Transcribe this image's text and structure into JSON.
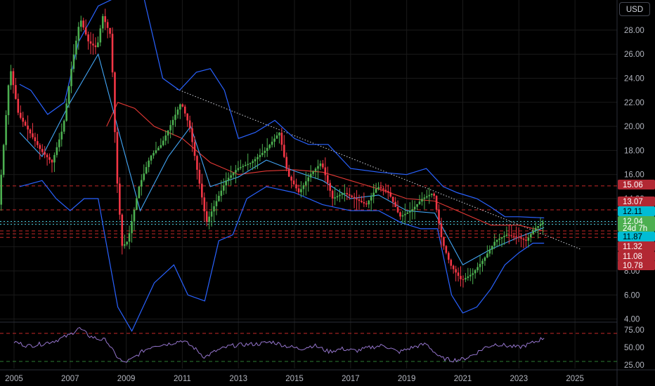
{
  "currency_button": "USD",
  "badges": [
    {
      "value": "15.06",
      "color": "#b22833",
      "text_color": "#ffffff"
    },
    {
      "value": "13.07",
      "color": "#b22833",
      "text_color": "#ffffff"
    },
    {
      "value": "12.11",
      "color": "#00bcd4",
      "text_color": "#000000"
    },
    {
      "value": "12.04",
      "sub": "24d 7h",
      "color": "#4caf50",
      "text_color": "#ffffff"
    },
    {
      "value": "11.87",
      "color": "#00bcd4",
      "text_color": "#000000"
    },
    {
      "value": "11.32",
      "color": "#b22833",
      "text_color": "#ffffff"
    },
    {
      "value": "11.08",
      "color": "#b22833",
      "text_color": "#ffffff"
    },
    {
      "value": "10.78",
      "color": "#b22833",
      "text_color": "#ffffff"
    }
  ],
  "chart_data": [
    {
      "type": "candlestick",
      "y_ticks": [
        4,
        6,
        8,
        10,
        12,
        14,
        16,
        18,
        20,
        22,
        24,
        26,
        28
      ],
      "y_tick_labels": [
        "4.00",
        "6.00",
        "8.00",
        "10.00",
        "12.00",
        "14.00",
        "16.00",
        "18.00",
        "20.00",
        "22.00",
        "24.00",
        "26.00",
        "28.00"
      ],
      "ylim": [
        3.8,
        30.5
      ],
      "x_ticks": [
        2005,
        2007,
        2009,
        2011,
        2013,
        2015,
        2017,
        2019,
        2021,
        2023,
        2025
      ],
      "xlim": [
        2004.5,
        2026.5
      ],
      "horizontal_levels": [
        {
          "value": 15.06,
          "style": "red-dashed"
        },
        {
          "value": 13.07,
          "style": "red-dashed"
        },
        {
          "value": 12.11,
          "style": "cyan-dotted"
        },
        {
          "value": 11.87,
          "style": "cyan-dotted"
        },
        {
          "value": 11.32,
          "style": "red-dashed"
        },
        {
          "value": 11.08,
          "style": "red-dashed"
        },
        {
          "value": 10.78,
          "style": "red-dashed"
        }
      ],
      "trendline": {
        "from": [
          2010.8,
          23.1
        ],
        "to": [
          2025.2,
          9.8
        ],
        "style": "white-dotted"
      },
      "price_path": [
        [
          2004.5,
          13.5
        ],
        [
          2004.9,
          25.0
        ],
        [
          2005.2,
          21.0
        ],
        [
          2005.6,
          19.5
        ],
        [
          2006.0,
          18.0
        ],
        [
          2006.4,
          17.0
        ],
        [
          2006.8,
          20.0
        ],
        [
          2007.1,
          25.0
        ],
        [
          2007.4,
          29.0
        ],
        [
          2007.7,
          27.0
        ],
        [
          2008.0,
          26.5
        ],
        [
          2008.2,
          29.2
        ],
        [
          2008.5,
          27.5
        ],
        [
          2008.7,
          16.0
        ],
        [
          2008.9,
          10.0
        ],
        [
          2009.1,
          10.5
        ],
        [
          2009.5,
          15.0
        ],
        [
          2009.9,
          17.5
        ],
        [
          2010.3,
          18.5
        ],
        [
          2010.7,
          20.5
        ],
        [
          2011.0,
          22.0
        ],
        [
          2011.3,
          20.0
        ],
        [
          2011.6,
          16.0
        ],
        [
          2011.9,
          12.0
        ],
        [
          2012.2,
          13.5
        ],
        [
          2012.6,
          15.5
        ],
        [
          2013.0,
          16.5
        ],
        [
          2013.5,
          17.0
        ],
        [
          2014.0,
          18.0
        ],
        [
          2014.5,
          19.5
        ],
        [
          2014.8,
          16.0
        ],
        [
          2015.2,
          14.5
        ],
        [
          2015.6,
          16.0
        ],
        [
          2016.0,
          17.0
        ],
        [
          2016.4,
          14.0
        ],
        [
          2016.8,
          14.5
        ],
        [
          2017.2,
          14.0
        ],
        [
          2017.6,
          13.5
        ],
        [
          2018.0,
          15.0
        ],
        [
          2018.4,
          14.5
        ],
        [
          2018.8,
          12.5
        ],
        [
          2019.2,
          13.0
        ],
        [
          2019.6,
          14.0
        ],
        [
          2020.0,
          14.5
        ],
        [
          2020.3,
          10.5
        ],
        [
          2020.6,
          8.5
        ],
        [
          2021.0,
          7.2
        ],
        [
          2021.4,
          7.8
        ],
        [
          2021.8,
          9.0
        ],
        [
          2022.2,
          10.5
        ],
        [
          2022.6,
          11.0
        ],
        [
          2023.0,
          10.8
        ],
        [
          2023.3,
          10.5
        ],
        [
          2023.6,
          11.5
        ],
        [
          2023.9,
          12.04
        ]
      ],
      "moving_average_red": [
        [
          2008.3,
          20.0
        ],
        [
          2008.7,
          22.0
        ],
        [
          2009.3,
          21.5
        ],
        [
          2010.0,
          20.0
        ],
        [
          2011.0,
          19.0
        ],
        [
          2012.0,
          17.0
        ],
        [
          2013.0,
          16.0
        ],
        [
          2014.0,
          16.3
        ],
        [
          2015.0,
          16.4
        ],
        [
          2016.0,
          16.2
        ],
        [
          2017.0,
          15.5
        ],
        [
          2018.0,
          14.8
        ],
        [
          2019.0,
          14.0
        ],
        [
          2020.0,
          13.8
        ],
        [
          2021.0,
          12.8
        ],
        [
          2022.0,
          11.8
        ],
        [
          2023.0,
          11.8
        ],
        [
          2023.9,
          11.3
        ]
      ],
      "moving_average_blue": [
        [
          2005.2,
          19.5
        ],
        [
          2006.0,
          17.5
        ],
        [
          2007.0,
          22.0
        ],
        [
          2008.0,
          26.0
        ],
        [
          2008.8,
          19.0
        ],
        [
          2009.5,
          13.0
        ],
        [
          2010.5,
          17.5
        ],
        [
          2011.3,
          20.0
        ],
        [
          2012.0,
          15.0
        ],
        [
          2013.0,
          15.8
        ],
        [
          2014.0,
          17.2
        ],
        [
          2015.0,
          16.3
        ],
        [
          2016.0,
          15.5
        ],
        [
          2017.0,
          14.0
        ],
        [
          2018.0,
          14.3
        ],
        [
          2019.0,
          13.0
        ],
        [
          2020.0,
          12.8
        ],
        [
          2021.0,
          8.5
        ],
        [
          2022.0,
          9.8
        ],
        [
          2023.0,
          10.8
        ],
        [
          2023.9,
          11.6
        ]
      ],
      "bollinger_upper": [
        [
          2005.2,
          23.5
        ],
        [
          2005.6,
          23.0
        ],
        [
          2006.2,
          21.0
        ],
        [
          2006.8,
          22.0
        ],
        [
          2007.3,
          27.0
        ],
        [
          2008.0,
          30.0
        ],
        [
          2008.9,
          31.0
        ],
        [
          2009.6,
          31.0
        ],
        [
          2010.3,
          24.0
        ],
        [
          2010.9,
          23.0
        ],
        [
          2011.5,
          24.5
        ],
        [
          2012.0,
          24.8
        ],
        [
          2012.5,
          23.0
        ],
        [
          2013.0,
          19.0
        ],
        [
          2013.6,
          19.5
        ],
        [
          2014.3,
          20.5
        ],
        [
          2015.0,
          19.0
        ],
        [
          2015.5,
          18.5
        ],
        [
          2016.2,
          18.5
        ],
        [
          2017.0,
          16.5
        ],
        [
          2018.0,
          16.2
        ],
        [
          2019.0,
          16.0
        ],
        [
          2019.7,
          16.5
        ],
        [
          2020.3,
          15.0
        ],
        [
          2020.8,
          14.5
        ],
        [
          2021.5,
          14.0
        ],
        [
          2022.0,
          13.3
        ],
        [
          2022.5,
          12.5
        ],
        [
          2023.0,
          12.5
        ],
        [
          2023.9,
          12.4
        ]
      ],
      "bollinger_lower": [
        [
          2005.2,
          15.0
        ],
        [
          2006.0,
          15.5
        ],
        [
          2006.5,
          14.0
        ],
        [
          2007.0,
          13.0
        ],
        [
          2007.5,
          14.0
        ],
        [
          2008.0,
          14.0
        ],
        [
          2008.7,
          5.0
        ],
        [
          2009.2,
          3.0
        ],
        [
          2010.0,
          7.0
        ],
        [
          2010.7,
          8.5
        ],
        [
          2011.2,
          6.0
        ],
        [
          2011.8,
          5.5
        ],
        [
          2012.3,
          10.5
        ],
        [
          2012.8,
          11.0
        ],
        [
          2013.3,
          14.0
        ],
        [
          2014.0,
          15.0
        ],
        [
          2015.0,
          14.5
        ],
        [
          2016.0,
          13.5
        ],
        [
          2017.0,
          13.0
        ],
        [
          2018.0,
          13.0
        ],
        [
          2018.8,
          12.0
        ],
        [
          2019.5,
          11.5
        ],
        [
          2020.1,
          11.5
        ],
        [
          2020.6,
          6.0
        ],
        [
          2021.0,
          4.5
        ],
        [
          2021.5,
          5.0
        ],
        [
          2022.0,
          6.5
        ],
        [
          2022.5,
          8.5
        ],
        [
          2023.0,
          9.5
        ],
        [
          2023.5,
          10.3
        ],
        [
          2023.9,
          10.3
        ]
      ]
    },
    {
      "type": "line",
      "indicator": "RSI",
      "y_ticks": [
        25,
        50,
        75
      ],
      "y_tick_labels": [
        "25.00",
        "50.00",
        "75.00"
      ],
      "ylim": [
        20,
        85
      ],
      "levels": [
        {
          "value": 70,
          "style": "red-dashed"
        },
        {
          "value": 30,
          "style": "green-dashed"
        }
      ],
      "series": [
        [
          2005.0,
          58
        ],
        [
          2005.5,
          52
        ],
        [
          2006.0,
          55
        ],
        [
          2006.5,
          60
        ],
        [
          2007.0,
          68
        ],
        [
          2007.3,
          78
        ],
        [
          2007.7,
          66
        ],
        [
          2008.0,
          62
        ],
        [
          2008.3,
          60
        ],
        [
          2008.6,
          40
        ],
        [
          2008.9,
          28
        ],
        [
          2009.2,
          33
        ],
        [
          2009.6,
          45
        ],
        [
          2010.0,
          53
        ],
        [
          2010.5,
          55
        ],
        [
          2011.0,
          60
        ],
        [
          2011.4,
          50
        ],
        [
          2011.8,
          36
        ],
        [
          2012.2,
          45
        ],
        [
          2012.7,
          52
        ],
        [
          2013.2,
          54
        ],
        [
          2013.7,
          55
        ],
        [
          2014.2,
          58
        ],
        [
          2014.7,
          52
        ],
        [
          2015.2,
          48
        ],
        [
          2015.7,
          53
        ],
        [
          2016.2,
          44
        ],
        [
          2016.7,
          48
        ],
        [
          2017.2,
          45
        ],
        [
          2017.7,
          50
        ],
        [
          2018.2,
          53
        ],
        [
          2018.7,
          43
        ],
        [
          2019.2,
          50
        ],
        [
          2019.7,
          55
        ],
        [
          2020.2,
          35
        ],
        [
          2020.6,
          32
        ],
        [
          2021.0,
          33
        ],
        [
          2021.4,
          40
        ],
        [
          2021.8,
          50
        ],
        [
          2022.2,
          55
        ],
        [
          2022.6,
          52
        ],
        [
          2023.0,
          50
        ],
        [
          2023.4,
          55
        ],
        [
          2023.8,
          62
        ],
        [
          2023.9,
          64
        ]
      ]
    }
  ]
}
